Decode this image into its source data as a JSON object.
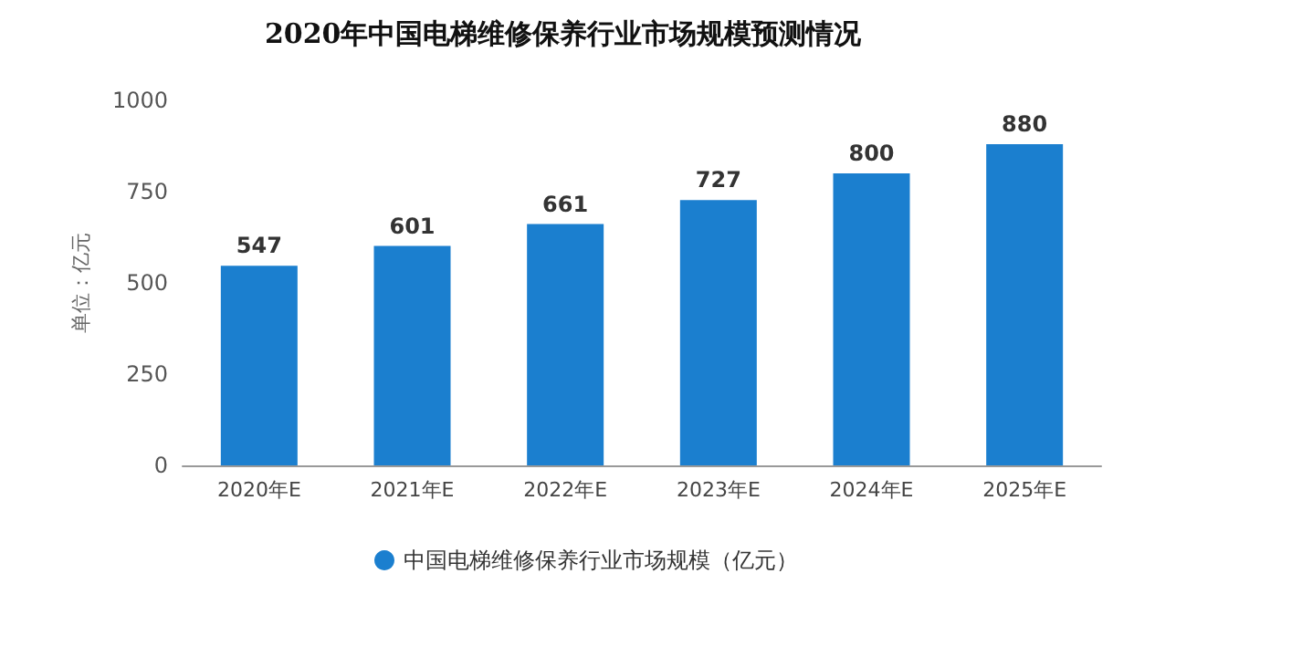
{
  "chart_data": {
    "type": "bar",
    "title": "2020年中国电梯维修保养行业市场规模预测情况",
    "ylabel": "单位：亿元",
    "categories": [
      "2020年E",
      "2021年E",
      "2022年E",
      "2023年E",
      "2024年E",
      "2025年E"
    ],
    "series": [
      {
        "name": "中国电梯维修保养行业市场规模（亿元）",
        "color": "#1b7fcf",
        "values": [
          547,
          601,
          661,
          727,
          800,
          880
        ]
      }
    ],
    "ylim": [
      0,
      1000
    ],
    "yticks": [
      0,
      250,
      500,
      750,
      1000
    ],
    "grid": false,
    "legend": "bottom",
    "data_labels": true
  }
}
